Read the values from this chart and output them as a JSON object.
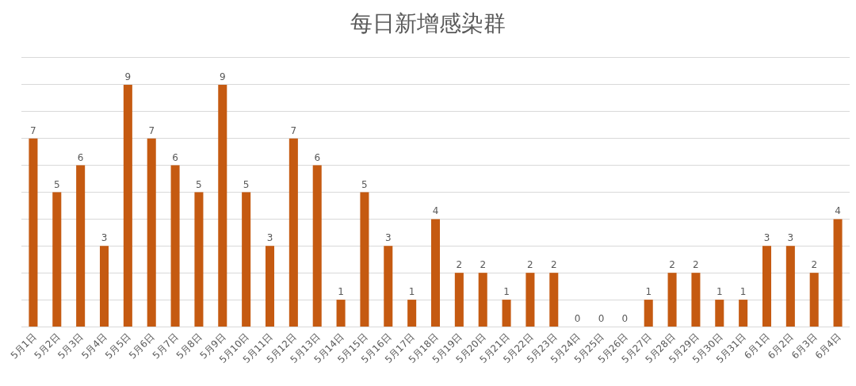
{
  "chart_data": {
    "type": "bar",
    "title": "每日新增感染群",
    "categories": [
      "5月1日",
      "5月2日",
      "5月3日",
      "5月4日",
      "5月5日",
      "5月6日",
      "5月7日",
      "5月8日",
      "5月9日",
      "5月10日",
      "5月11日",
      "5月12日",
      "5月13日",
      "5月14日",
      "5月15日",
      "5月16日",
      "5月17日",
      "5月18日",
      "5月19日",
      "5月20日",
      "5月21日",
      "5月22日",
      "5月23日",
      "5月24日",
      "5月25日",
      "5月26日",
      "5月27日",
      "5月28日",
      "5月29日",
      "5月30日",
      "5月31日",
      "6月1日",
      "6月2日",
      "6月3日",
      "6月4日"
    ],
    "values": [
      7,
      5,
      6,
      3,
      9,
      7,
      6,
      5,
      9,
      5,
      3,
      7,
      6,
      1,
      5,
      3,
      1,
      4,
      2,
      2,
      1,
      2,
      2,
      0,
      0,
      0,
      1,
      2,
      2,
      1,
      1,
      3,
      3,
      2,
      4
    ],
    "color": "#c55a11",
    "ylim": [
      0,
      10
    ],
    "yticks": [
      {
        "value": 0,
        "label": null
      },
      {
        "value": 1,
        "label": null
      },
      {
        "value": 2,
        "label": null
      },
      {
        "value": 3,
        "label": null
      },
      {
        "value": 4,
        "label": null
      },
      {
        "value": 5,
        "label": null
      },
      {
        "value": 6,
        "label": null
      },
      {
        "value": 7,
        "label": null
      },
      {
        "value": 8,
        "label": null
      },
      {
        "value": 9,
        "label": null
      },
      {
        "value": 10,
        "label": null
      }
    ],
    "grid": "y",
    "tick_labels": "x",
    "data_labels": true
  }
}
